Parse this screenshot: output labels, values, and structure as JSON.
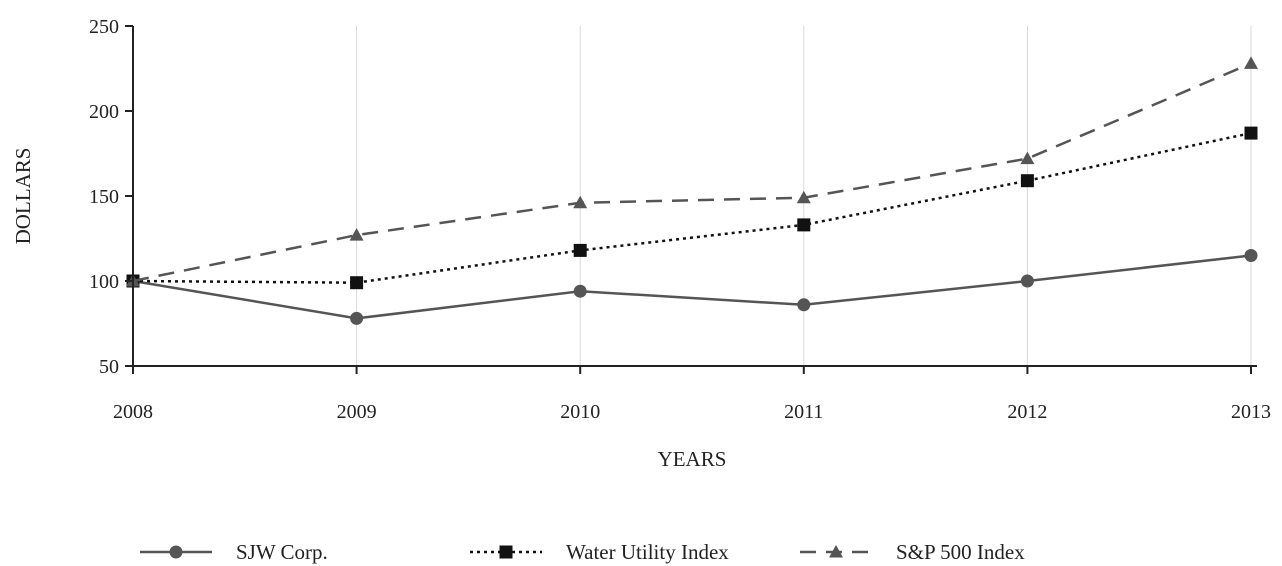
{
  "chart_data": {
    "type": "line",
    "title": "",
    "xlabel": "YEARS",
    "ylabel": "DOLLARS",
    "x": [
      "2008",
      "2009",
      "2010",
      "2011",
      "2012",
      "2013"
    ],
    "ylim": [
      50,
      250
    ],
    "yticks": [
      50,
      100,
      150,
      200,
      250
    ],
    "grid": "vertical",
    "legend_position": "bottom",
    "series": [
      {
        "name": "SJW Corp.",
        "values": [
          100,
          78,
          94,
          86,
          100,
          115
        ],
        "line_style": "solid",
        "marker": "circle",
        "color": "#555555"
      },
      {
        "name": "Water Utility Index",
        "values": [
          100,
          99,
          118,
          133,
          159,
          187
        ],
        "line_style": "dotted",
        "marker": "square",
        "color": "#111111"
      },
      {
        "name": "S&P 500 Index",
        "values": [
          100,
          127,
          146,
          149,
          172,
          228
        ],
        "line_style": "dashed",
        "marker": "triangle",
        "color": "#555555"
      }
    ]
  }
}
